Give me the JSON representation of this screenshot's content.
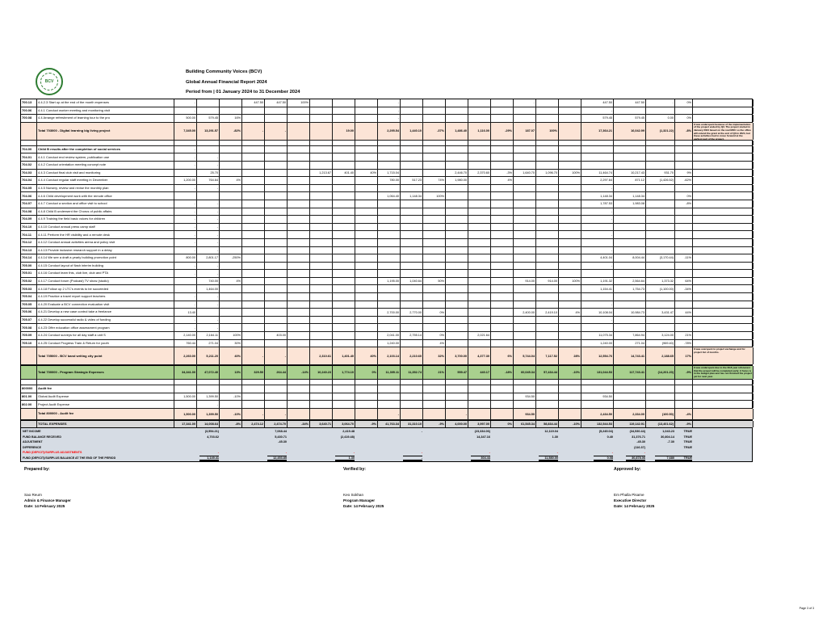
{
  "header": {
    "org": "Building Community Voices (BCV)",
    "report_title": "Global Annual Financial Report 2024",
    "period": "Period from | 01 January 2024 to 31 December 2024",
    "logo_text": "BCV"
  },
  "colors": {
    "total_row_bg": "#fce4d6",
    "green_total_bg": "#a9d08e",
    "grand_total_bg": "#d9d9d9",
    "summary_bg": "#d6dce4",
    "alert_red": "#ff0000",
    "logo_green": "#2e7d32"
  },
  "table": {
    "rows": [
      {
        "type": "normal",
        "code": "700.13",
        "desc": "4.4.2.3 Start up at the end of the month expenses",
        "cells": {
          "0": "-",
          "3": "447.50",
          "4": "447.50",
          "5": "100%",
          "9": "-",
          "15": "-",
          "18": "447.50",
          "19": "447.50",
          "20": "-",
          "21": "0%"
        }
      },
      {
        "type": "normal",
        "code": "700.06",
        "desc": "4.4.1 Conduct worker meeting and monitoring visit",
        "cells": {
          "0": "-",
          "9": "-",
          "18": "-"
        }
      },
      {
        "type": "normal",
        "code": "700.08",
        "desc": "4.4 Arrange refreshment of learning tour to the pro",
        "cells": {
          "0": "500.00",
          "1": "579.45",
          "2": "16%",
          "9": "-",
          "18": "579.45",
          "19": "579.45",
          "20": "0.00",
          "21": "0%"
        }
      },
      {
        "type": "tall",
        "code": "",
        "desc": "Total 703000 - Digital learning big living project",
        "cells": {
          "0": "7,345.00",
          "1": "13,291.57",
          "2": "-82%",
          "3": "-",
          "4": "-",
          "7": "19.00",
          "9": "2,295.54",
          "10": "1,440.10",
          "11": "-37%",
          "12": "1,486.40",
          "13": "1,116.00",
          "14": "-29%",
          "15": "187.07",
          "16": "100%",
          "18": "17,364.21",
          "19": "16,042.99",
          "20": "(1,321.22)",
          "21": "-8%"
        },
        "note": "It was underspent because of the implementation of the project ended by Q3. The project started in January 2024 based on the real MOU so the office will extend the grant at the end of Q3 in 2024, but these activities had to move forward at the earliest part of the project."
      },
      {
        "type": "spacer",
        "code": "",
        "desc": "",
        "cells": {}
      },
      {
        "type": "section",
        "code": "704.00",
        "desc": "Child B results after the completion of social services",
        "cells": {
          "0": "-"
        }
      },
      {
        "type": "normal",
        "code": "704.01",
        "desc": "4.4.1 Conduct end review system, publication use",
        "cells": {
          "0": "-",
          "1": "-"
        }
      },
      {
        "type": "normal",
        "code": "704.02",
        "desc": "4.4.2 Conduct orientation meeting concept note",
        "cells": {
          "0": "-",
          "1": "-"
        }
      },
      {
        "type": "normal",
        "code": "704.03",
        "desc": "4.4.3 Conduct final club visit and monitoring",
        "cells": {
          "1": "25.70",
          "6": "1,213.67",
          "7": "401.40",
          "8": "40%",
          "9": "1,715.04",
          "12": "2,446.70",
          "13": "2,370.60",
          "14": "-3%",
          "15": "1,640.70",
          "16": "1,096.70",
          "17": "100%",
          "18": "11,464.74",
          "19": "10,217.43",
          "20": "931.70",
          "21": "9%"
        }
      },
      {
        "type": "normal",
        "code": "704.04",
        "desc": "4.4.4 Conduct regular staff meeting in December",
        "cells": {
          "0": "1,200.00",
          "1": "764.64",
          "2": "4%",
          "9": "780.00",
          "10": "517.23",
          "11": "74%",
          "12": "1,980.00",
          "14": "4%",
          "18": "2,297.64",
          "19": "871.12",
          "20": "(1,426.52)",
          "21": "-62%"
        }
      },
      {
        "type": "normal",
        "code": "704.05",
        "desc": "4.4.5 Nursery, review and revise the monthly plan",
        "cells": {
          "0": "-",
          "1": "-",
          "18": "-"
        }
      },
      {
        "type": "normal",
        "code": "704.06",
        "desc": "4.4.6 Child development work with the remote office",
        "cells": {
          "9": "1,064.40",
          "10": "1,148.34",
          "11": "100%",
          "18": "1,148.34",
          "19": "1,148.34",
          "21": "0%"
        }
      },
      {
        "type": "normal",
        "code": "704.07",
        "desc": "4.4.7 Conduct a section and office visit to school",
        "cells": {
          "0": "-",
          "1": "-",
          "18": "1,787.53",
          "19": "1,983.08",
          "21": "-8%"
        }
      },
      {
        "type": "normal",
        "code": "704.08",
        "desc": "4.4.8 Child B underwent the Chorus of public affairs",
        "cells": {
          "0": "-",
          "1": "-",
          "18": "-"
        }
      },
      {
        "type": "normal",
        "code": "704.09",
        "desc": "4.4.9 Training the field basic voices for children",
        "cells": {
          "0": "-",
          "1": "-",
          "18": "-"
        }
      },
      {
        "type": "normal",
        "code": "704.10",
        "desc": "4.4.10 Conduct annual press camp staff",
        "cells": {
          "0": "-",
          "1": "-"
        }
      },
      {
        "type": "normal",
        "code": "704.11",
        "desc": "4.4.11 Perform the HR visibility and a remote desk",
        "cells": {
          "0": "-",
          "1": "-",
          "18": "-"
        }
      },
      {
        "type": "normal",
        "code": "704.12",
        "desc": "4.4.12 Conduct annual activities arena and policy visit",
        "cells": {
          "0": "-",
          "1": "-"
        }
      },
      {
        "type": "normal",
        "code": "704.13",
        "desc": "4.4.13 Provide inclusive research support in a delay",
        "cells": {
          "0": "-",
          "1": "-",
          "18": "-"
        }
      },
      {
        "type": "normal",
        "code": "704.14",
        "desc": "4.4.14 We see a draft a yearly building promotion point",
        "cells": {
          "0": "800.00",
          "1": "2,801.17",
          "2": "-250%",
          "18": "4,401.04",
          "19": "8,004.44",
          "20": "(3,170.44)",
          "21": "-11%"
        }
      },
      {
        "type": "normal",
        "code": "705.00",
        "desc": "4.4.15 Conduct layout of flash interim building",
        "cells": {
          "0": "-",
          "1": "-",
          "18": "-"
        }
      },
      {
        "type": "normal",
        "code": "705.01",
        "desc": "4.4.16 Conduct learn this, club live, club and PTA",
        "cells": {
          "0": "-",
          "1": "-"
        }
      },
      {
        "type": "normal",
        "code": "705.02",
        "desc": "4.4.17 Conduct forum (Podcast) TV show (studio)",
        "cells": {
          "1": "740.00",
          "2": "4%",
          "9": "1,195.00",
          "10": "1,040.64",
          "11": "50%",
          "15": "914.00",
          "16": "914.00",
          "17": "100%",
          "18": "1,191.32",
          "19": "2,564.64",
          "20": "1,373.32",
          "21": "64%"
        }
      },
      {
        "type": "normal",
        "code": "705.03",
        "desc": "4.4.18 Follow up 2 LTC's events to be succeeded",
        "cells": {
          "1": "1,464.00",
          "18": "1,154.41",
          "19": "1,754.73",
          "20": "(1,100.00)",
          "21": "-34%"
        }
      },
      {
        "type": "normal",
        "code": "705.04",
        "desc": "4.4.19 Practice a travel report support teachers",
        "cells": {
          "0": "-",
          "1": "-"
        }
      },
      {
        "type": "normal",
        "code": "705.05",
        "desc": "4.4.20 Evaluate a BCV connection evaluation visit",
        "cells": {
          "0": "-",
          "1": "-",
          "18": "-"
        }
      },
      {
        "type": "normal",
        "code": "705.06",
        "desc": "4.4.21 Develop a new case control take a freelance",
        "cells": {
          "0": "13.40",
          "9": "2,700.00",
          "10": "2,770.00",
          "11": "0%",
          "15": "2,400.00",
          "16": "2,419.10",
          "17": "4%",
          "18": "10,108.04",
          "19": "10,984.73",
          "20": "3,431.47",
          "21": "44%"
        }
      },
      {
        "type": "normal",
        "code": "705.07",
        "desc": "4.4.22 Develop successful radio & video of funding",
        "cells": {
          "0": "-",
          "1": "-",
          "18": "-"
        }
      },
      {
        "type": "normal",
        "code": "705.08",
        "desc": "4.4.23 Offer education office assessment program",
        "cells": {
          "0": "-",
          "1": "-"
        }
      },
      {
        "type": "normal",
        "code": "705.09",
        "desc": "4.4.24 Conduct surveys for all day staff a unit S",
        "cells": {
          "0": "2,140.00",
          "1": "2,164.11",
          "2": "100%",
          "4": "403.00",
          "9": "2,041.00",
          "10": "2,755.14",
          "11": "0%",
          "13": "2,021.64",
          "18": "11,075.34",
          "19": "7,864.94",
          "20": "3,124.00",
          "21": "21%"
        }
      },
      {
        "type": "normal",
        "code": "705.10",
        "desc": "4.4.25 Conduct Progress Train & Return for youth",
        "cells": {
          "0": "760.44",
          "1": "271.04",
          "2": "30%",
          "9": "1,240.00",
          "11": "4%",
          "18": "1,240.00",
          "19": "271.04",
          "20": "(969.40)",
          "21": "-78%"
        }
      },
      {
        "type": "tall",
        "code": "",
        "desc": "Total 705000 - BCV band writing city point",
        "cells": {
          "0": "2,260.00",
          "1": "5,211.20",
          "2": "40%",
          "3": "-",
          "4": "-",
          "6": "2,310.61",
          "7": "1,401.40",
          "8": "40%",
          "9": "2,103.14",
          "10": "2,210.60",
          "11": "32%",
          "12": "3,700.00",
          "13": "4,377.30",
          "14": "6%",
          "15": "5,744.04",
          "16": "7,117.52",
          "17": "28%",
          "18": "12,554.76",
          "19": "14,743.41",
          "20": "2,188.65",
          "21": "17%"
        },
        "note": "It was overspent to project exchange and for project list of months."
      },
      {
        "type": "green",
        "code": "",
        "desc": "Total 700000 - Program Strategic Expenses",
        "cells": {
          "0": "34,341.00",
          "1": "47,072.40",
          "2": "13%",
          "3": "329.50",
          "4": "264.44",
          "5": "-14%",
          "6": "10,240.23",
          "7": "1,774.10",
          "8": "0%",
          "9": "11,305.11",
          "10": "11,352.74",
          "11": "21%",
          "12": "559.47",
          "13": "440.17",
          "14": "-18%",
          "15": "60,045.34",
          "16": "57,434.44",
          "17": "-10%",
          "18": "131,044.53",
          "19": "117,743.41",
          "20": "(14,201.20)",
          "21": "-9%"
        },
        "note": "It was underspent due to the 29.8 year reforecast that the project will be completed early; it focus is in the budget plan and has not finished the project yet for next year."
      },
      {
        "type": "spacer",
        "code": "",
        "desc": "",
        "cells": {}
      },
      {
        "type": "section",
        "code": "800000",
        "desc": "Audit fee",
        "cells": {}
      },
      {
        "type": "normal",
        "code": "801.00",
        "desc": "Global Audit Expense",
        "cells": {
          "0": "1,500.00",
          "1": "1,399.50",
          "2": "-10%",
          "15": "934.50",
          "18": "934.50"
        }
      },
      {
        "type": "normal",
        "code": "802.00",
        "desc": "Project Audit Expense",
        "cells": {
          "1": "-"
        }
      },
      {
        "type": "total",
        "code": "",
        "desc": "Total 800000 - Audit fee",
        "cells": {
          "0": "1,500.00",
          "1": "1,399.50",
          "2": "-10%",
          "3": "-",
          "4": "-",
          "9": "-",
          "12": "-",
          "15": "934.50",
          "18": "2,434.50",
          "19": "2,334.00",
          "20": "(100.50)",
          "21": "-4%"
        }
      },
      {
        "type": "grand",
        "code": "",
        "desc": "TOTAL EXPENSES",
        "cells": {
          "0": "17,341.00",
          "1": "14,008.64",
          "2": "-8%",
          "3": "2,474.12",
          "4": "2,474.70",
          "5": "-34%",
          "6": "3,640.71",
          "7": "3,064.70",
          "8": "-9%",
          "9": "41,763.34",
          "10": "31,310.10",
          "11": "-9%",
          "12": "4,000.00",
          "13": "3,997.00",
          "14": "0%",
          "15": "61,545.34",
          "16": "58,834.44",
          "17": "-10%",
          "18": "132,544.53",
          "19": "119,142.91",
          "20": "(13,401.62)",
          "21": "-9%"
        }
      }
    ]
  },
  "summary": {
    "rows": [
      {
        "type": "normal",
        "h": "s-h1",
        "label": "NET INCOME",
        "slots": {
          "1": "(3,554.21)",
          "4": "7,068.44",
          "7": "2,419.48",
          "10": "-",
          "13": "(23,334.06)",
          "16": "12,119.04",
          "18": "(5,245.04)",
          "19": "(34,530.44)",
          "20": "1,043.23",
          "21": "TRUE"
        }
      },
      {
        "type": "normal",
        "h": "s-h1",
        "label": "FUND BALANCE RECEIVED",
        "slots": {
          "1": "4,703.62",
          "4": "5,430.71",
          "7": "(2,419.48)",
          "13": "14,347.16",
          "16": "1.30",
          "18": "0.40",
          "19": "31,376.71",
          "20": "30,804.14",
          "21": "TRUE"
        }
      },
      {
        "type": "normal",
        "h": "s-h2",
        "label": "ADJUSTMENT",
        "slots": {
          "4": "-45.30",
          "19": "-45.30",
          "20": "-7.30",
          "21": "TRUE"
        }
      },
      {
        "type": "normal",
        "h": "s-h2",
        "label": "DIFFERENCE",
        "slots": {
          "19": "(116.37)",
          "21": "TRUE"
        }
      },
      {
        "type": "red",
        "h": "s-h3",
        "label": "FUND (DEFICIT)/SURPLUS ADJUSTMENTS",
        "slots": {
          "1": "-",
          "4": "-",
          "7": "-",
          "10": "-",
          "13": "-",
          "16": "-",
          "18": "-",
          "19": "-"
        }
      },
      {
        "type": "final",
        "h": "s-h1",
        "label": "FUND (DEFICIT)/SURPLUS BALANCE AT THE END OF THE PERIOD",
        "slots": {
          "1": "1,149.41",
          "4": "12,453.85",
          "7": "1.30",
          "10": "-",
          "13": "304.44",
          "16": "11,580.00",
          "18": "0.08",
          "19": "30,878.06",
          "20": "7,680",
          "21": "TRUE"
        }
      }
    ]
  },
  "signatures": [
    {
      "title": "Prepared by:",
      "name": "Sao Reurn",
      "role": "Admin & Finance Manager",
      "date": "Date: 14 February 2025"
    },
    {
      "title": "Verified by:",
      "name": "Keo Sokhan",
      "role": "Program Manager",
      "date": "Date: 14 February 2025"
    },
    {
      "title": "Approved by:",
      "name": "Em Phalla Pisame",
      "role": "Executive Director",
      "date": "Date: 14 February 2025"
    }
  ],
  "page": {
    "footer": "Page 3 of 3"
  }
}
